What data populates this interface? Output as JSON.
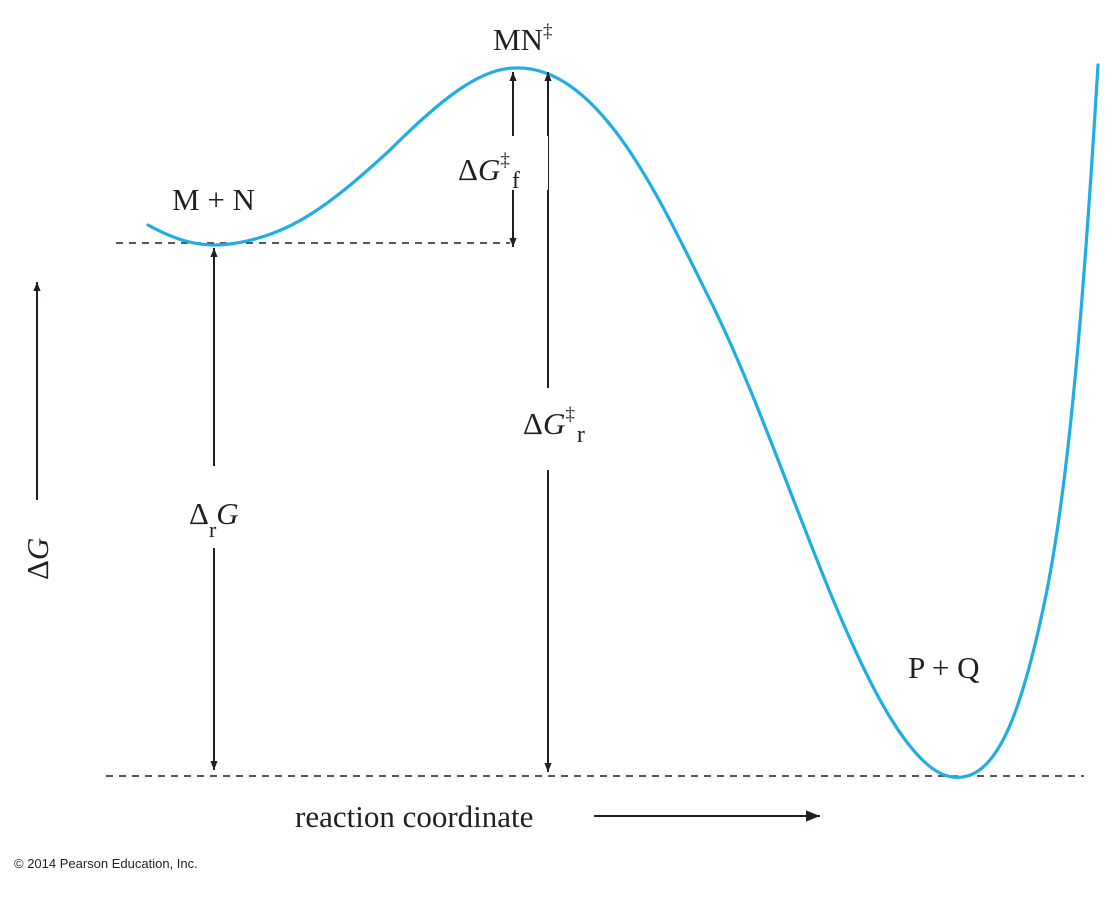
{
  "colors": {
    "curve": "#1eaee4",
    "ink": "#231f20"
  },
  "labels": {
    "reactants": "M + N",
    "transition_state": "MN",
    "transition_state_sup": "‡",
    "products": "P + Q",
    "dg_forward_delta": "Δ",
    "dg_forward_g": "G",
    "dg_forward_sup": "‡",
    "dg_forward_sub": "f",
    "dg_reverse_delta": "Δ",
    "dg_reverse_g": "G",
    "dg_reverse_sup": "‡",
    "dg_reverse_sub": "r",
    "drg_delta": "Δ",
    "drg_sub": "r",
    "drg_g": "G",
    "y_axis_delta": "Δ",
    "y_axis_g": "G",
    "x_axis": "reaction coordinate"
  },
  "copyright": "© 2014 Pearson Education, Inc."
}
